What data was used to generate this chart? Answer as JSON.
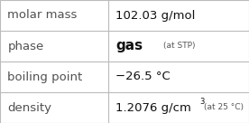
{
  "rows": [
    {
      "label": "molar mass",
      "value_main": "102.03 g/mol",
      "value_super": "",
      "value_note": ""
    },
    {
      "label": "phase",
      "value_main": "gas",
      "value_bold": true,
      "value_super": "",
      "value_note": "(at STP)"
    },
    {
      "label": "boiling point",
      "value_main": "−26.5 °C",
      "value_super": "",
      "value_note": ""
    },
    {
      "label": "density",
      "value_main": "1.2076 g/cm",
      "value_super": "3",
      "value_note": "(at 25 °C)"
    }
  ],
  "col_split": 0.435,
  "background_color": "#ffffff",
  "border_color": "#bbbbbb",
  "label_color": "#505050",
  "value_color": "#111111",
  "note_color": "#555555",
  "font_size_main": 9.5,
  "font_size_note": 6.5,
  "font_size_super": 6.0,
  "label_font_size": 9.5,
  "fig_width": 2.76,
  "fig_height": 1.36,
  "dpi": 100
}
